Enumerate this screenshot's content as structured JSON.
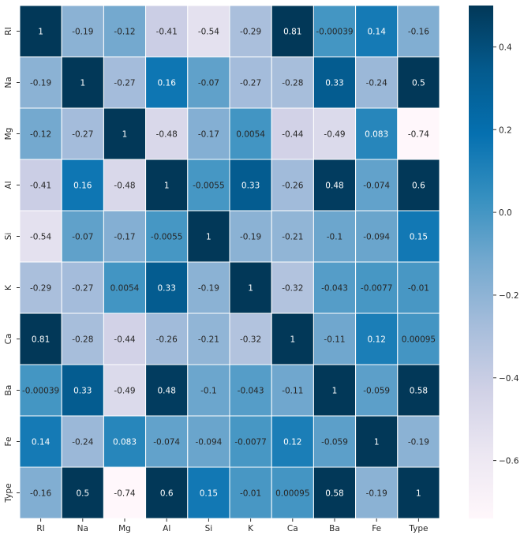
{
  "chart_data": {
    "type": "heatmap",
    "title": "",
    "xlabel": "",
    "ylabel": "",
    "x_categories": [
      "RI",
      "Na",
      "Mg",
      "Al",
      "Si",
      "K",
      "Ca",
      "Ba",
      "Fe",
      "Type"
    ],
    "y_categories": [
      "RI",
      "Na",
      "Mg",
      "Al",
      "Si",
      "K",
      "Ca",
      "Ba",
      "Fe",
      "Type"
    ],
    "value_labels": [
      [
        "1",
        "-0.19",
        "-0.12",
        "-0.41",
        "-0.54",
        "-0.29",
        "0.81",
        "-0.00039",
        "0.14",
        "-0.16"
      ],
      [
        "-0.19",
        "1",
        "-0.27",
        "0.16",
        "-0.07",
        "-0.27",
        "-0.28",
        "0.33",
        "-0.24",
        "0.5"
      ],
      [
        "-0.12",
        "-0.27",
        "1",
        "-0.48",
        "-0.17",
        "0.0054",
        "-0.44",
        "-0.49",
        "0.083",
        "-0.74"
      ],
      [
        "-0.41",
        "0.16",
        "-0.48",
        "1",
        "-0.0055",
        "0.33",
        "-0.26",
        "0.48",
        "-0.074",
        "0.6"
      ],
      [
        "-0.54",
        "-0.07",
        "-0.17",
        "-0.0055",
        "1",
        "-0.19",
        "-0.21",
        "-0.1",
        "-0.094",
        "0.15"
      ],
      [
        "-0.29",
        "-0.27",
        "0.0054",
        "0.33",
        "-0.19",
        "1",
        "-0.32",
        "-0.043",
        "-0.0077",
        "-0.01"
      ],
      [
        "0.81",
        "-0.28",
        "-0.44",
        "-0.26",
        "-0.21",
        "-0.32",
        "1",
        "-0.11",
        "0.12",
        "0.00095"
      ],
      [
        "-0.00039",
        "0.33",
        "-0.49",
        "0.48",
        "-0.1",
        "-0.043",
        "-0.11",
        "1",
        "-0.059",
        "0.58"
      ],
      [
        "0.14",
        "-0.24",
        "0.083",
        "-0.074",
        "-0.094",
        "-0.0077",
        "0.12",
        "-0.059",
        "1",
        "-0.19"
      ],
      [
        "-0.16",
        "0.5",
        "-0.74",
        "0.6",
        "0.15",
        "-0.01",
        "0.00095",
        "0.58",
        "-0.19",
        "1"
      ]
    ],
    "color_range": [
      -0.74,
      0.5
    ],
    "colormap": "PuBu",
    "colorbar_ticks": [
      "0.4",
      "0.2",
      "0.0",
      "−0.2",
      "−0.4",
      "−0.6"
    ],
    "colorbar_tick_values": [
      0.4,
      0.2,
      0.0,
      -0.2,
      -0.4,
      -0.6
    ],
    "gridlines": "white",
    "legend": "colorbar-right"
  }
}
